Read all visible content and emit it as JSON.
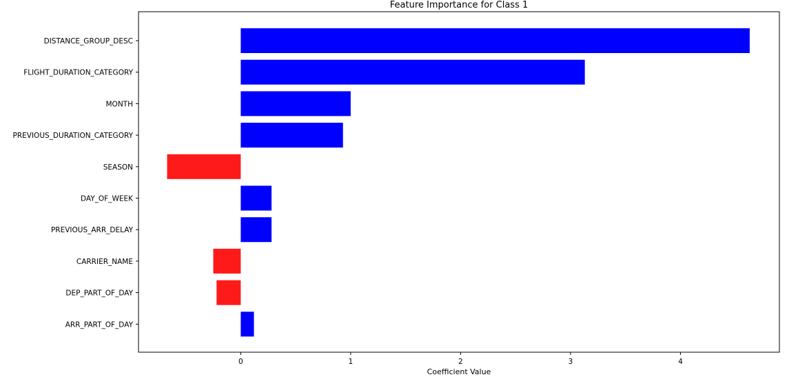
{
  "chart_data": {
    "type": "bar",
    "orientation": "horizontal",
    "title": "Feature Importance for Class 1",
    "xlabel": "Coefficient Value",
    "ylabel": "",
    "xlim": [
      -0.93,
      4.9
    ],
    "xticks": [
      0,
      1,
      2,
      3,
      4
    ],
    "grid": false,
    "categories": [
      "DISTANCE_GROUP_DESC",
      "FLIGHT_DURATION_CATEGORY",
      "MONTH",
      "PREVIOUS_DURATION_CATEGORY",
      "SEASON",
      "DAY_OF_WEEK",
      "PREVIOUS_ARR_DELAY",
      "CARRIER_NAME",
      "DEP_PART_OF_DAY",
      "ARR_PART_OF_DAY"
    ],
    "values": [
      4.63,
      3.13,
      1.0,
      0.93,
      -0.67,
      0.28,
      0.28,
      -0.25,
      -0.22,
      0.12
    ],
    "colors": {
      "positive": "#0000ff",
      "negative": "#ff1a1a"
    }
  }
}
